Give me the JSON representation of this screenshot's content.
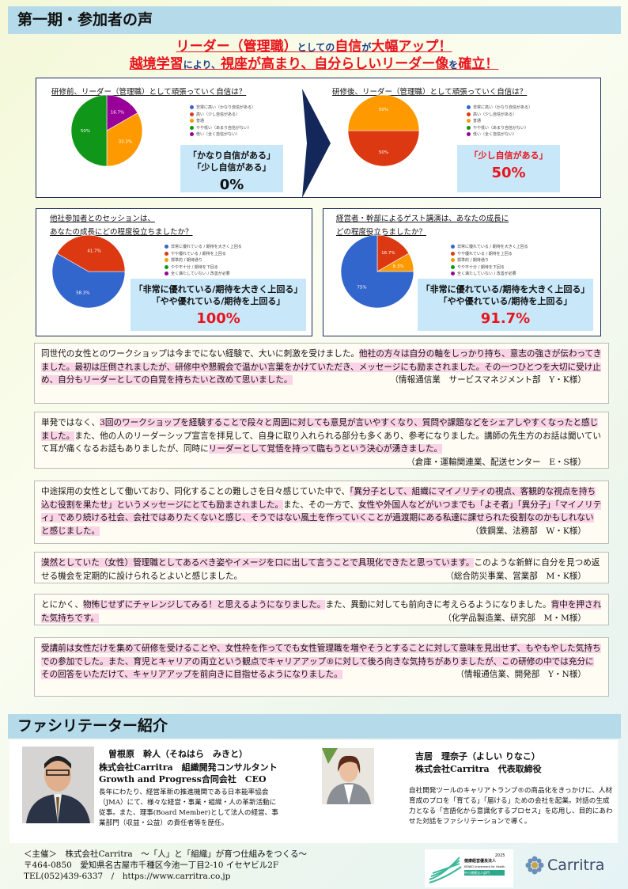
{
  "section1_title": "第一期・参加者の声",
  "headline": {
    "line1": [
      {
        "t": "リーダー（管理職）",
        "s": "r"
      },
      {
        "t": "としての",
        "s": "b"
      },
      {
        "t": "自信",
        "s": "r"
      },
      {
        "t": "が",
        "s": "b"
      },
      {
        "t": "大幅アップ！",
        "s": "r"
      }
    ],
    "line2": [
      {
        "t": "越境学習",
        "s": "r"
      },
      {
        "t": "により、",
        "s": "b"
      },
      {
        "t": "視座が高まり、自分らしいリーダー像",
        "s": "r"
      },
      {
        "t": "を",
        "s": "b"
      },
      {
        "t": "確立！",
        "s": "r"
      }
    ]
  },
  "colors": {
    "blue": "#3366cc",
    "red": "#dc3912",
    "orange": "#ff9900",
    "green": "#109618",
    "purple": "#990099",
    "accent": "#e8141c",
    "header": "#b5dbea",
    "highlight": "#fbd3e6"
  },
  "surveys": [
    {
      "question": [
        "研修前、リーダー（管理職）として頑張っていく自信は？"
      ],
      "legend": [
        {
          "label": "非常に高い（かなり自信がある）",
          "color": "blue"
        },
        {
          "label": "高い（少し自信がある）",
          "color": "red"
        },
        {
          "label": "普通",
          "color": "orange"
        },
        {
          "label": "やや低い（あまり自信がない）",
          "color": "green"
        },
        {
          "label": "低い（全く自信がない）",
          "color": "purple"
        }
      ],
      "slices": [
        {
          "value": 16.7,
          "label": "16.7%",
          "color": "purple"
        },
        {
          "value": 33.3,
          "label": "33.3%",
          "color": "orange"
        },
        {
          "value": 50,
          "label": "50%",
          "color": "green"
        }
      ],
      "result_lines": [
        "「かなり自信がある」",
        "「少し自信がある」"
      ],
      "result_value": "0%"
    },
    {
      "question": [
        "研修後、リーダー（管理職）として頑張っていく自信は？"
      ],
      "legend": [
        {
          "label": "非常に高い（かなり自信がある）",
          "color": "blue"
        },
        {
          "label": "高い（少し自信がある）",
          "color": "red"
        },
        {
          "label": "普通",
          "color": "orange"
        },
        {
          "label": "やや低い（あまり自信がない）",
          "color": "green"
        },
        {
          "label": "低い（全く自信がない）",
          "color": "purple"
        }
      ],
      "slices": [
        {
          "value": 50,
          "label": "50%",
          "color": "red"
        },
        {
          "value": 50,
          "label": "50%",
          "color": "orange"
        }
      ],
      "result_lines": [
        "「少し自信がある」"
      ],
      "result_value": "50%"
    },
    {
      "question": [
        "他社参加者とのセッションは、",
        "あなたの成長にどの程度役立ちましたか？"
      ],
      "legend": [
        {
          "label": "非常に優れている / 期待を大きく上回る",
          "color": "blue"
        },
        {
          "label": "やや優れている / 期待を上回る",
          "color": "red"
        },
        {
          "label": "標準的 / 期待通り",
          "color": "orange"
        },
        {
          "label": "やや不十分 / 期待を下回る",
          "color": "green"
        },
        {
          "label": "全く満たしていない / 改善が必要",
          "color": "purple"
        }
      ],
      "slices": [
        {
          "value": 58.3,
          "label": "58.3%",
          "color": "blue"
        },
        {
          "value": 41.7,
          "label": "41.7%",
          "color": "red"
        }
      ],
      "result_lines": [
        "「非常に優れている/期待を大きく上回る」",
        "「やや優れている/期待を上回る」"
      ],
      "result_value": "100%"
    },
    {
      "question": [
        "経営者・幹部によるゲスト講演は、あなたの成長に",
        "どの程度役立ちましたか？"
      ],
      "legend": [
        {
          "label": "非常に優れている / 期待を大きく上回る",
          "color": "blue"
        },
        {
          "label": "やや優れている / 期待を上回る",
          "color": "red"
        },
        {
          "label": "標準的 / 期待通り",
          "color": "orange"
        },
        {
          "label": "やや不十分 / 期待を下回る",
          "color": "green"
        },
        {
          "label": "全く満たしていない / 改善が必要",
          "color": "purple"
        }
      ],
      "slices": [
        {
          "value": 16.7,
          "label": "16.7%",
          "color": "red"
        },
        {
          "value": 8.3,
          "label": "8.3%",
          "color": "orange"
        },
        {
          "value": 75,
          "label": "75%",
          "color": "blue"
        }
      ],
      "result_lines": [
        "「非常に優れている/期待を大きく上回る」",
        "「やや優れている/期待を上回る」"
      ],
      "result_value": "91.7%"
    }
  ],
  "testimonials": [
    {
      "segments": [
        {
          "t": "同世代の女性とのワークショップは今までにない経験で、大いに刺激を受けました。",
          "hl": false
        },
        {
          "t": "他社の方々は自分の軸をしっかり持ち、意志の強さが伝わってきました。最初は圧倒されましたが、研修中や懇親会で温かい言葉をかけていただき、メッセージにも励まされました。その一つひとつを大切に受け止め、自分もリーダーとしての自覚を持ちたいと改めて思いました。",
          "hl": true
        }
      ],
      "author": "（情報通信業　サービスマネジメント部　Y・K様）"
    },
    {
      "segments": [
        {
          "t": "単発ではなく、",
          "hl": false
        },
        {
          "t": "3回のワークショップを経験することで段々と周囲に対しても意見が言いやすくなり、質問や課題などをシェアしやすくなったと感じました。",
          "hl": true
        },
        {
          "t": "また、他の人のリーダーシップ宣言を拝見して、自身に取り入れられる部分も多くあり、参考になりました。講師の先生方のお話は聞いていて耳が痛くなるお話もありましたが、同時に",
          "hl": false
        },
        {
          "t": "リーダーとして覚悟を持って臨もうという決心が湧きました。",
          "hl": true
        }
      ],
      "author": "（倉庫・運輸関連業、配送センター　E・S様）"
    },
    {
      "segments": [
        {
          "t": "中途採用の女性として働いており、同化することの難しさを日々感じていた中で、",
          "hl": false
        },
        {
          "t": "「異分子として、組織にマイノリティの視点、客観的な視点を持ち込む役割を果たせ」というメッセージにとても励まされました。",
          "hl": true
        },
        {
          "t": "また、その一方で、",
          "hl": false
        },
        {
          "t": "女性や外国人などがいつまでも「よそ者」「異分子」「マイノリティ」であり続ける社会、会社ではありたくないと感じ、そうではない風土を作っていくことが過渡期にある私達に課せられた役割なのかもしれないと感じました。",
          "hl": true
        }
      ],
      "author": "（鉄鋼業、法務部　W・K様）"
    },
    {
      "segments": [
        {
          "t": "漠然としていた（女性）管理職としてあるべき姿やイメージを口に出して言うことで具現化できたと思っています。",
          "hl": true
        },
        {
          "t": "このような新鮮に自分を見つめ返せる機会を定期的に設けられるとよいと感じました。",
          "hl": false
        }
      ],
      "author": "（総合防災事業、営業部　M・K様）"
    },
    {
      "segments": [
        {
          "t": "とにかく、",
          "hl": false
        },
        {
          "t": "物怖じせずにチャレンジしてみる！と思えるようになりました。",
          "hl": true
        },
        {
          "t": "また、異動に対しても前向きに考えらるようになりました。",
          "hl": false
        },
        {
          "t": "背中を押された気持ちです。",
          "hl": true
        }
      ],
      "author": "（化学品製造業、研究部　M・M様）"
    },
    {
      "segments": [
        {
          "t": "受講前は女性だけを集めて研修を受けることや、女性枠を作ってでも女性管理職を増やそうとすることに対して意味を見出せず、もやもやした気持ちでの参加でした。また、育児とキャリアの両立という観点でキャリアアップ®に対して後ろ向きな気持ちがありましたが、この研修の中では充分にその回答をいただけて、キャリアアップを前向きに目指せるようになりました。",
          "hl": true
        }
      ],
      "author": "（情報通信業、開発部　Y・N様）"
    }
  ],
  "section2_title": "ファシリテーター紹介",
  "facilitators": [
    {
      "name": "曽根原　幹人（そねはら　みきと）",
      "titles": [
        "株式会社Carritra　組織開発コンサルタント",
        "Growth and Progress合同会社　CEO"
      ],
      "bio": "長年にわたり、経営革新の推進機関である日本能率協会（JMA）にて、様々な経営・事業・組織・人の革新活動に従事。また、理事(Board Member)として法人の経営、事業部門（収益・公益）の責任者等を歴任。"
    },
    {
      "name": "吉居　理奈子（よしい りなこ）",
      "titles": [
        "株式会社Carritra　代表取締役"
      ],
      "bio": "自社開発ツールのキャリアトランプ®の商品化をきっかけに、人材育成のプロを「育てる」「届ける」ための会社を起業。対話の生成力となる「言語化から意識化するプロセス」を応用し、目的にあわせた対話をファシリテーションで導く。"
    }
  ],
  "footer": {
    "lines": [
      "＜主催＞　株式会社Carritra　～「人」と「組織」が育つ仕組みをつくる～",
      "〒464-0850　愛知県名古屋市千種区今池一丁目2-10 イセヤビル2F",
      "TEL(052)439-6337　/　https://www.carritra.co.jp"
    ],
    "kenko_logo": {
      "year": "2025",
      "name": "健康経営優良法人",
      "en": "KENKO Investment for Health",
      "sub": "中小規模法人部門"
    },
    "brand_logo": "Carritra"
  }
}
